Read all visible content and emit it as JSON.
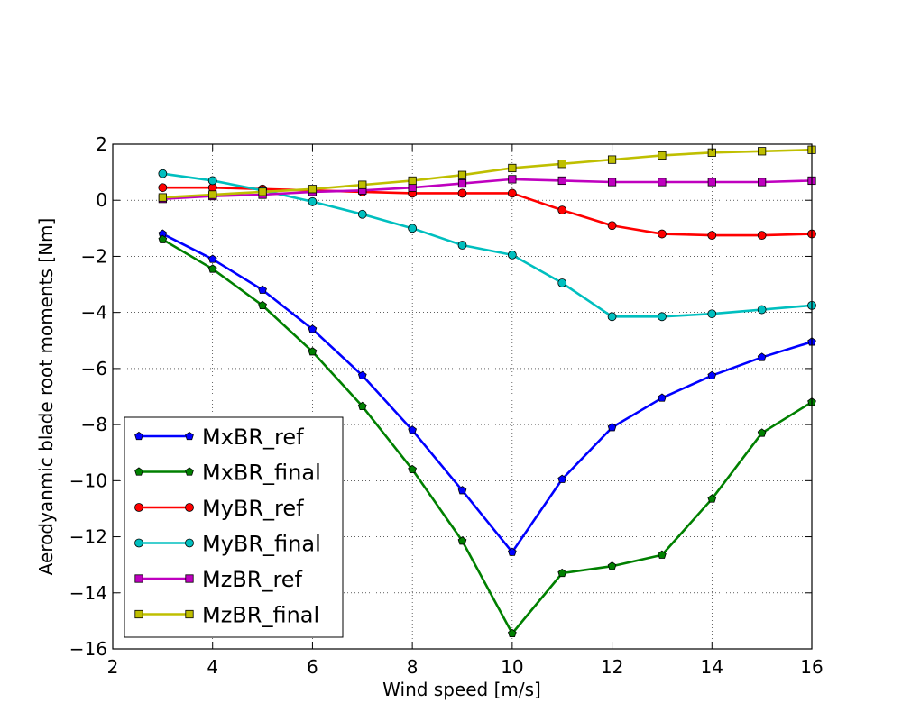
{
  "chart_data": {
    "type": "line",
    "title": "",
    "xlabel": "Wind speed [m/s]",
    "ylabel": "Aerodyanmic blade root moments [Nm]",
    "xlim": [
      2,
      16
    ],
    "ylim": [
      -16,
      2
    ],
    "x_ticks": [
      2,
      4,
      6,
      8,
      10,
      12,
      14,
      16
    ],
    "y_ticks": [
      2,
      0,
      -2,
      -4,
      -6,
      -8,
      -10,
      -12,
      -14,
      -16
    ],
    "x_tick_labels": [
      "2",
      "4",
      "6",
      "8",
      "10",
      "12",
      "14",
      "16"
    ],
    "y_tick_labels": [
      "2",
      "0",
      "−2",
      "−4",
      "−6",
      "−8",
      "−10",
      "−12",
      "−14",
      "−16"
    ],
    "grid": true,
    "legend_position": "lower-left",
    "x": [
      3,
      4,
      5,
      6,
      7,
      8,
      9,
      10,
      11,
      12,
      13,
      14,
      15,
      16
    ],
    "series": [
      {
        "name": "MxBR_ref",
        "color": "#0000ff",
        "marker": "pentagon",
        "values": [
          -1.2,
          -2.1,
          -3.2,
          -4.6,
          -6.25,
          -8.2,
          -10.35,
          -12.55,
          -9.95,
          -8.1,
          -7.05,
          -6.25,
          -5.6,
          -5.05
        ]
      },
      {
        "name": "MxBR_final",
        "color": "#008000",
        "marker": "pentagon",
        "values": [
          -1.4,
          -2.45,
          -3.75,
          -5.4,
          -7.35,
          -9.6,
          -12.15,
          -15.45,
          -13.3,
          -13.05,
          -12.65,
          -10.65,
          -8.3,
          -7.2
        ]
      },
      {
        "name": "MyBR_ref",
        "color": "#ff0000",
        "marker": "circle",
        "values": [
          0.45,
          0.45,
          0.4,
          0.35,
          0.3,
          0.25,
          0.25,
          0.25,
          -0.35,
          -0.9,
          -1.2,
          -1.25,
          -1.25,
          -1.2
        ]
      },
      {
        "name": "MyBR_final",
        "color": "#00bfbf",
        "marker": "circle",
        "values": [
          0.95,
          0.7,
          0.35,
          -0.05,
          -0.5,
          -1.0,
          -1.6,
          -1.95,
          -2.95,
          -4.15,
          -4.15,
          -4.05,
          -3.9,
          -3.75
        ]
      },
      {
        "name": "MzBR_ref",
        "color": "#bf00bf",
        "marker": "square",
        "values": [
          0.05,
          0.15,
          0.2,
          0.3,
          0.35,
          0.45,
          0.6,
          0.75,
          0.7,
          0.65,
          0.65,
          0.65,
          0.65,
          0.7
        ]
      },
      {
        "name": "MzBR_final",
        "color": "#bfbf00",
        "marker": "square",
        "values": [
          0.1,
          0.2,
          0.3,
          0.4,
          0.55,
          0.7,
          0.9,
          1.15,
          1.3,
          1.45,
          1.6,
          1.7,
          1.75,
          1.8
        ]
      }
    ]
  }
}
